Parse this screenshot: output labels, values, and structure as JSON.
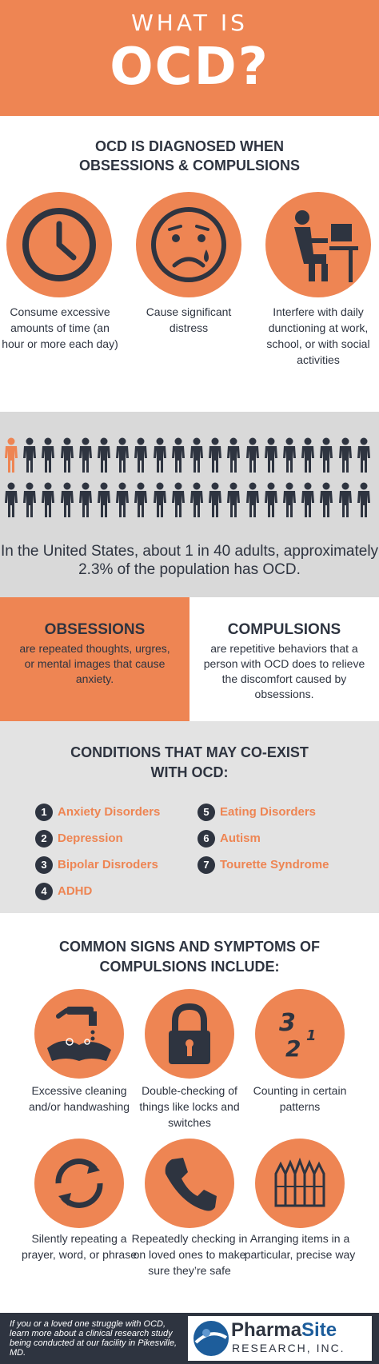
{
  "header": {
    "line1": "WHAT IS",
    "line2": "OCD?"
  },
  "diagnosed": {
    "title_line1": "OCD IS DIAGNOSED WHEN",
    "title_line2": "OBSESSIONS & COMPULSIONS",
    "items": [
      {
        "icon": "clock-icon",
        "text": "Consume excessive amounts of time (an hour or more each day)"
      },
      {
        "icon": "crying-face-icon",
        "text": "Cause significant distress"
      },
      {
        "icon": "person-at-computer-icon",
        "text": "Interfere with daily dunctioning at work, school, or with social activities"
      }
    ]
  },
  "stats": {
    "text": "In the United States, about 1 in 40 adults, approximately 2.3% of the population has OCD.",
    "highlighted": 1,
    "total": 40
  },
  "obsessions": {
    "title": "OBSESSIONS",
    "desc": "are repeated thoughts, urgres, or mental images that cause anxiety."
  },
  "compulsions": {
    "title": "COMPULSIONS",
    "desc": "are repetitive behaviors that a person with OCD does to relieve the discomfort caused by obsessions."
  },
  "conditions": {
    "title_line1": "CONDITIONS THAT MAY CO-EXIST",
    "title_line2": "WITH OCD:",
    "items": [
      {
        "num": "1",
        "label": "Anxiety Disorders"
      },
      {
        "num": "2",
        "label": "Depression"
      },
      {
        "num": "3",
        "label": "Bipolar Disroders"
      },
      {
        "num": "4",
        "label": "ADHD"
      },
      {
        "num": "5",
        "label": "Eating Disorders"
      },
      {
        "num": "6",
        "label": "Autism"
      },
      {
        "num": "7",
        "label": "Tourette Syndrome"
      }
    ]
  },
  "signs": {
    "title_line1": "COMMON SIGNS AND SYMPTOMS OF",
    "title_line2": "COMPULSIONS INCLUDE:",
    "items": [
      {
        "icon": "handwashing-icon",
        "text": "Excessive cleaning and/or handwashing"
      },
      {
        "icon": "padlock-icon",
        "text": "Double-checking of things like locks and switches"
      },
      {
        "icon": "numbers-icon",
        "text": "Counting in certain patterns"
      },
      {
        "icon": "repeat-arrows-icon",
        "text": "Silently repeating a prayer, word, or phrase"
      },
      {
        "icon": "phone-icon",
        "text": "Repeatedly checking in on loved ones to make sure they’re safe"
      },
      {
        "icon": "arranged-pencils-icon",
        "text": "Arranging items in a particular, precise way"
      }
    ],
    "numbers_icon_digits": [
      "3",
      "1",
      "2"
    ]
  },
  "footer": {
    "text": "If you or a loved one struggle with OCD, learn more about a clinical research study being conducted at our facility in Pikesville, MD.",
    "logo_name_1": "Pharma",
    "logo_name_2": "Site",
    "logo_sub": "RESEARCH, INC."
  },
  "colors": {
    "accent": "#ee8553",
    "dark": "#2e3440",
    "gray": "#d9d9d9",
    "blue": "#1d5d9b"
  }
}
